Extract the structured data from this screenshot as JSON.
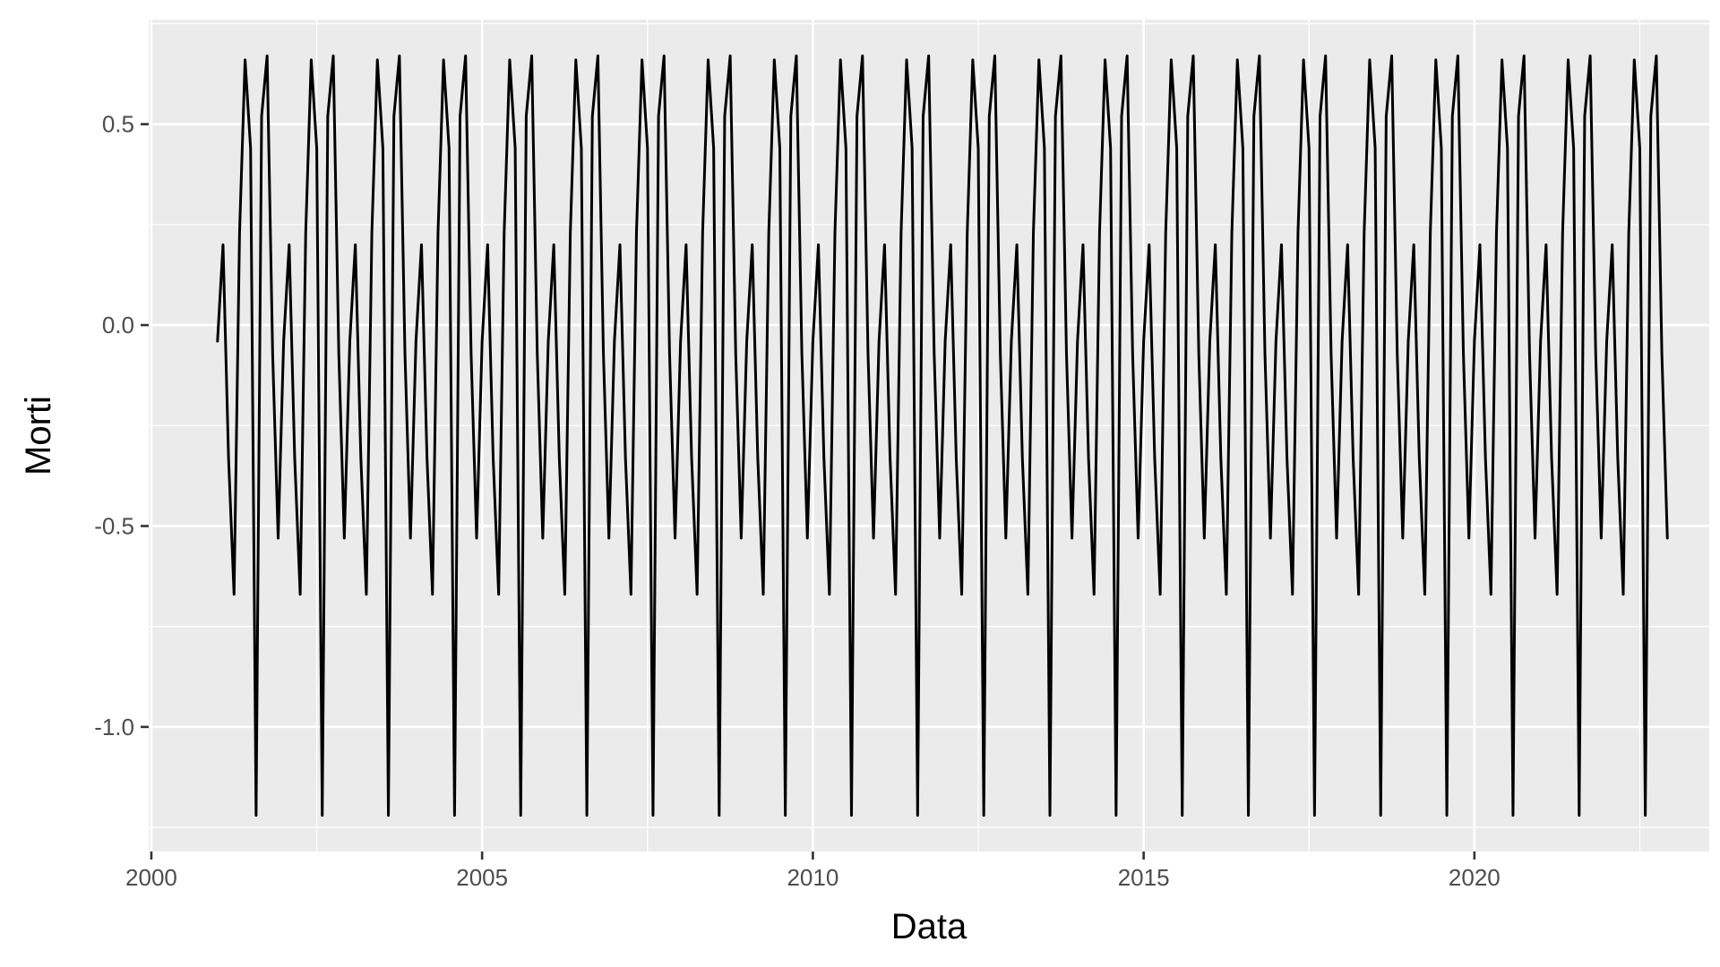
{
  "chart_data": {
    "type": "line",
    "title": "",
    "xlabel": "Data",
    "ylabel": "Morti",
    "x_tick_labels": [
      "2000",
      "2005",
      "2010",
      "2015",
      "2020"
    ],
    "y_tick_labels": [
      "-1.0",
      "-0.5",
      "0.0",
      "0.5"
    ],
    "xlim": [
      1999.96,
      2023.55
    ],
    "ylim": [
      -1.31,
      0.76
    ],
    "x_ticks": [
      2000,
      2005,
      2010,
      2015,
      2020
    ],
    "y_ticks": [
      -1.0,
      -0.5,
      0.0,
      0.5
    ],
    "grid": true,
    "legend": "none",
    "x_start": "2001-01",
    "x_end": "2022-12",
    "frequency": "monthly",
    "seasonal_cycle_12_months": [
      -0.04,
      0.2,
      -0.33,
      -0.67,
      0.23,
      0.66,
      0.44,
      -1.22,
      0.52,
      0.67,
      -0.07,
      -0.53
    ],
    "series": [
      {
        "name": "",
        "color": "#000000",
        "values": [
          -0.04,
          0.2,
          -0.33,
          -0.67,
          0.23,
          0.66,
          0.44,
          -1.22,
          0.52,
          0.67,
          -0.07,
          -0.53,
          -0.04,
          0.2,
          -0.33,
          -0.67,
          0.23,
          0.66,
          0.44,
          -1.22,
          0.52,
          0.67,
          -0.07,
          -0.53,
          -0.04,
          0.2,
          -0.33,
          -0.67,
          0.23,
          0.66,
          0.44,
          -1.22,
          0.52,
          0.67,
          -0.07,
          -0.53,
          -0.04,
          0.2,
          -0.33,
          -0.67,
          0.23,
          0.66,
          0.44,
          -1.22,
          0.52,
          0.67,
          -0.07,
          -0.53,
          -0.04,
          0.2,
          -0.33,
          -0.67,
          0.23,
          0.66,
          0.44,
          -1.22,
          0.52,
          0.67,
          -0.07,
          -0.53,
          -0.04,
          0.2,
          -0.33,
          -0.67,
          0.23,
          0.66,
          0.44,
          -1.22,
          0.52,
          0.67,
          -0.07,
          -0.53,
          -0.04,
          0.2,
          -0.33,
          -0.67,
          0.23,
          0.66,
          0.44,
          -1.22,
          0.52,
          0.67,
          -0.07,
          -0.53,
          -0.04,
          0.2,
          -0.33,
          -0.67,
          0.23,
          0.66,
          0.44,
          -1.22,
          0.52,
          0.67,
          -0.07,
          -0.53,
          -0.04,
          0.2,
          -0.33,
          -0.67,
          0.23,
          0.66,
          0.44,
          -1.22,
          0.52,
          0.67,
          -0.07,
          -0.53,
          -0.04,
          0.2,
          -0.33,
          -0.67,
          0.23,
          0.66,
          0.44,
          -1.22,
          0.52,
          0.67,
          -0.07,
          -0.53,
          -0.04,
          0.2,
          -0.33,
          -0.67,
          0.23,
          0.66,
          0.44,
          -1.22,
          0.52,
          0.67,
          -0.07,
          -0.53,
          -0.04,
          0.2,
          -0.33,
          -0.67,
          0.23,
          0.66,
          0.44,
          -1.22,
          0.52,
          0.67,
          -0.07,
          -0.53,
          -0.04,
          0.2,
          -0.33,
          -0.67,
          0.23,
          0.66,
          0.44,
          -1.22,
          0.52,
          0.67,
          -0.07,
          -0.53,
          -0.04,
          0.2,
          -0.33,
          -0.67,
          0.23,
          0.66,
          0.44,
          -1.22,
          0.52,
          0.67,
          -0.07,
          -0.53,
          -0.04,
          0.2,
          -0.33,
          -0.67,
          0.23,
          0.66,
          0.44,
          -1.22,
          0.52,
          0.67,
          -0.07,
          -0.53,
          -0.04,
          0.2,
          -0.33,
          -0.67,
          0.23,
          0.66,
          0.44,
          -1.22,
          0.52,
          0.67,
          -0.07,
          -0.53,
          -0.04,
          0.2,
          -0.33,
          -0.67,
          0.23,
          0.66,
          0.44,
          -1.22,
          0.52,
          0.67,
          -0.07,
          -0.53,
          -0.04,
          0.2,
          -0.33,
          -0.67,
          0.23,
          0.66,
          0.44,
          -1.22,
          0.52,
          0.67,
          -0.07,
          -0.53,
          -0.04,
          0.2,
          -0.33,
          -0.67,
          0.23,
          0.66,
          0.44,
          -1.22,
          0.52,
          0.67,
          -0.07,
          -0.53,
          -0.04,
          0.2,
          -0.33,
          -0.67,
          0.23,
          0.66,
          0.44,
          -1.22,
          0.52,
          0.67,
          -0.07,
          -0.53,
          -0.04,
          0.2,
          -0.33,
          -0.67,
          0.23,
          0.66,
          0.44,
          -1.22,
          0.52,
          0.67,
          -0.07,
          -0.53,
          -0.04,
          0.2,
          -0.33,
          -0.67,
          0.23,
          0.66,
          0.44,
          -1.22,
          0.52,
          0.67,
          -0.07,
          -0.53
        ]
      }
    ]
  },
  "colors": {
    "panel_background": "#ebebeb",
    "grid": "#ffffff",
    "line": "#000000",
    "tick_text": "#4d4d4d",
    "axis_title": "#000000"
  }
}
